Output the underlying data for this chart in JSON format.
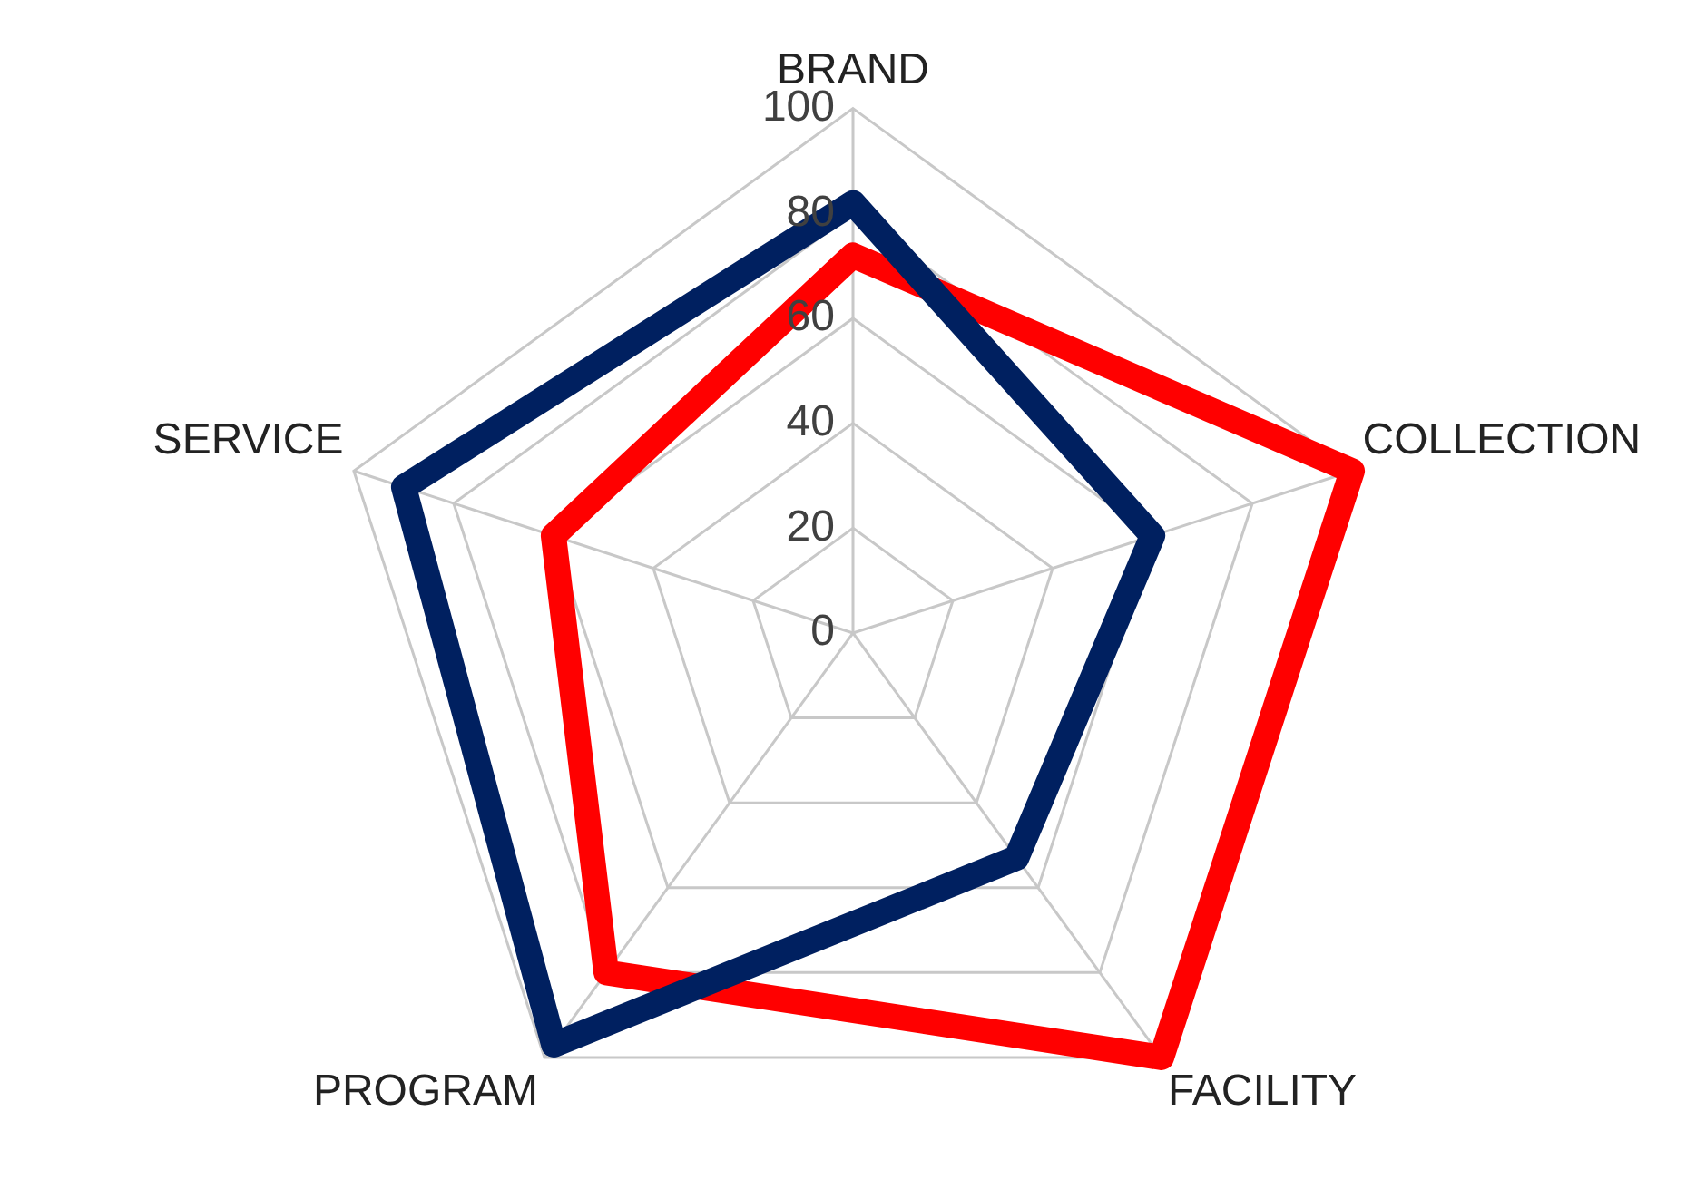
{
  "chart_data": {
    "type": "radar",
    "categories": [
      "BRAND",
      "COLLECTION",
      "FACILITY",
      "PROGRAM",
      "SERVICE"
    ],
    "series": [
      {
        "color": "#002060",
        "values": [
          82,
          60,
          53,
          97,
          90
        ]
      },
      {
        "color": "#ff0000",
        "values": [
          72,
          100,
          100,
          80,
          60
        ]
      }
    ],
    "ylim": [
      0,
      100
    ],
    "yticks": [
      0,
      20,
      40,
      60,
      80,
      100
    ],
    "grid": true,
    "legend": false,
    "marker": "none",
    "line_style": "solid"
  }
}
